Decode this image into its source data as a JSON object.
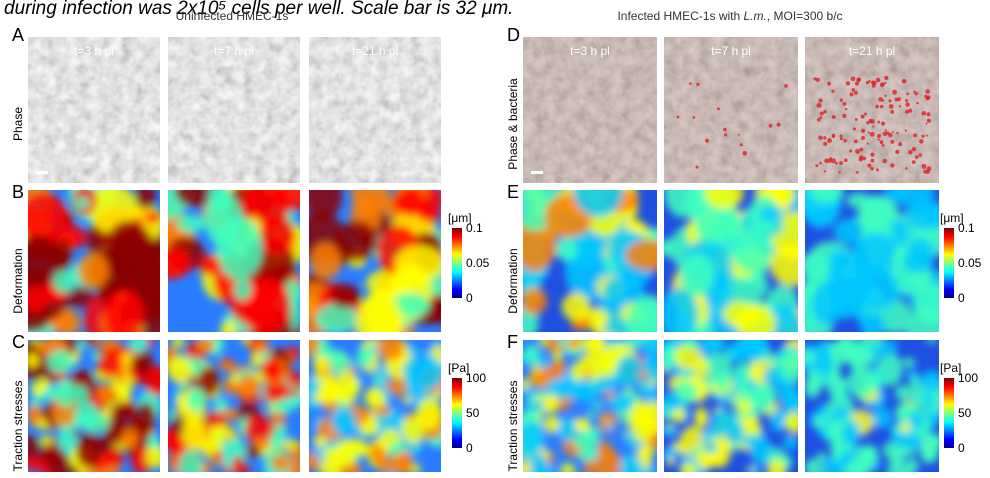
{
  "caption_fragment": "during infection was 2x10⁵ cells per well. Scale bar is 32 μm.",
  "left": {
    "title": "Uninfected HMEC-1s",
    "panel_labels": [
      "A",
      "B",
      "C"
    ],
    "row_labels": [
      "Phase",
      "Deformation",
      "Traction stresses"
    ],
    "time_labels": [
      "t=3 h pl",
      "t=7 h pl",
      "t=21 h pl"
    ],
    "deformation_colorbar": {
      "unit": "[μm]",
      "ticks": [
        "0.1",
        "0.05",
        "0"
      ]
    },
    "traction_colorbar": {
      "unit": "[Pa]",
      "ticks": [
        "100",
        "50",
        "0"
      ]
    }
  },
  "right": {
    "title_parts": [
      "Infected HMEC-1s with ",
      "L.m.",
      ", MOI=300 b/c"
    ],
    "panel_labels": [
      "D",
      "E",
      "F"
    ],
    "row_labels": [
      "Phase & bacteria",
      "Deformation",
      "Traction stresses"
    ],
    "time_labels": [
      "t=3 h pl",
      "t=7 h pl",
      "t=21 h pl"
    ],
    "deformation_colorbar": {
      "unit": "[μm]",
      "ticks": [
        "0.1",
        "0.05",
        "0"
      ]
    },
    "traction_colorbar": {
      "unit": "[Pa]",
      "ticks": [
        "100",
        "50",
        "0"
      ]
    }
  }
}
